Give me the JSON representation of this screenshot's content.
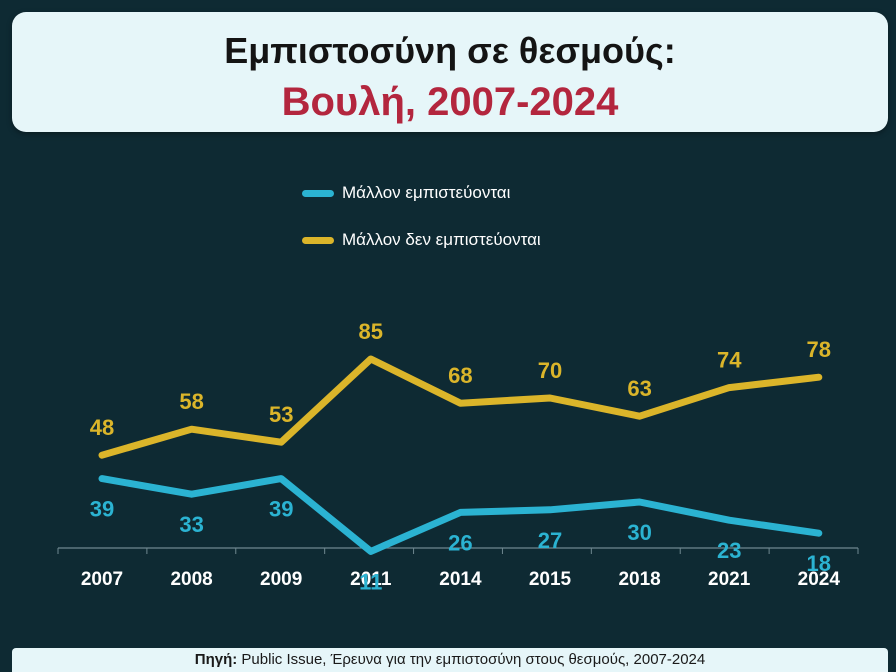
{
  "header": {
    "title_line1": "Εμπιστοσύνη σε θεσμούς:",
    "title_line2": "Βουλή, 2007-2024"
  },
  "chart_data": {
    "type": "line",
    "categories": [
      "2007",
      "2008",
      "2009",
      "2011",
      "2014",
      "2015",
      "2018",
      "2021",
      "2024"
    ],
    "series": [
      {
        "name": "Μάλλον εμπιστεύονται",
        "color": "#2bb3d2",
        "values": [
          39,
          33,
          39,
          11,
          26,
          27,
          30,
          23,
          18
        ]
      },
      {
        "name": "Μάλλον δεν εμπιστεύονται",
        "color": "#dbb52a",
        "values": [
          48,
          58,
          53,
          85,
          68,
          70,
          63,
          74,
          78
        ]
      }
    ],
    "legend_position": "top-center",
    "grid": false
  },
  "source": {
    "label": "Πηγή:",
    "text": " Public Issue, Έρευνα για την εμπιστοσύνη στους θεσμούς, 2007-2024"
  }
}
